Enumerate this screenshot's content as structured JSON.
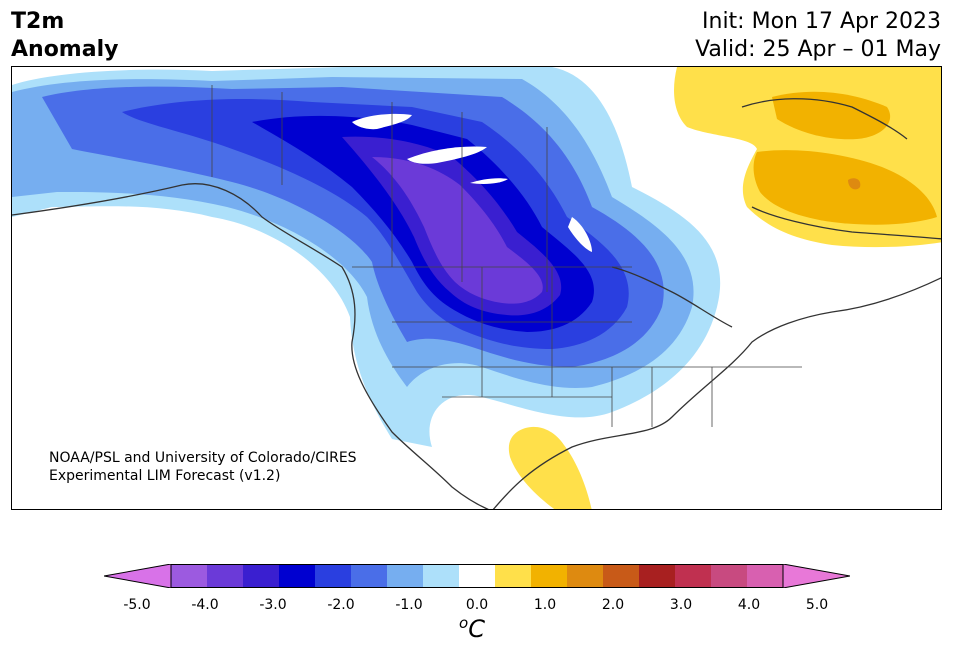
{
  "header": {
    "title_line1": "T2m",
    "title_line2": "Anomaly",
    "init_text": "Init: Mon 17 Apr 2023",
    "valid_text": "Valid: 25 Apr – 01 May"
  },
  "map": {
    "region": "North America",
    "variable": "2-meter temperature anomaly",
    "features": [
      {
        "name": "cold-anomaly-core",
        "description": "strong negative anomaly over western/central Canada and north-central US",
        "min_level": -3.5
      },
      {
        "name": "warm-anomaly-northeast-canada",
        "description": "positive anomaly over Quebec/Labrador and Baffin Island",
        "max_level": 1.5
      },
      {
        "name": "warm-anomaly-mexico",
        "description": "positive anomaly over northeastern Mexico",
        "max_level": 1.0
      }
    ]
  },
  "credit": {
    "line1": "NOAA/PSL and University of Colorado/CIRES",
    "line2": "Experimental LIM Forecast (v1.2)"
  },
  "colorbar": {
    "tick_labels": [
      "-5.0",
      "-4.0",
      "-3.0",
      "-2.0",
      "-1.0",
      "0.0",
      "1.0",
      "2.0",
      "3.0",
      "4.0",
      "5.0"
    ],
    "colors": [
      "#d872e8",
      "#9c5ae0",
      "#6b3ad8",
      "#3a1fd0",
      "#0000d0",
      "#2a3fe0",
      "#4a6ee8",
      "#76aef0",
      "#ade0fa",
      "#ffffff",
      "#ffe04a",
      "#f2b200",
      "#de8a10",
      "#c85a18",
      "#a82020",
      "#c03050",
      "#c84a80",
      "#d860b0",
      "#e878d8"
    ],
    "min_extend_color": "#d872e8",
    "max_extend_color": "#e878d8",
    "unit_base": "o",
    "unit_text": "C"
  }
}
